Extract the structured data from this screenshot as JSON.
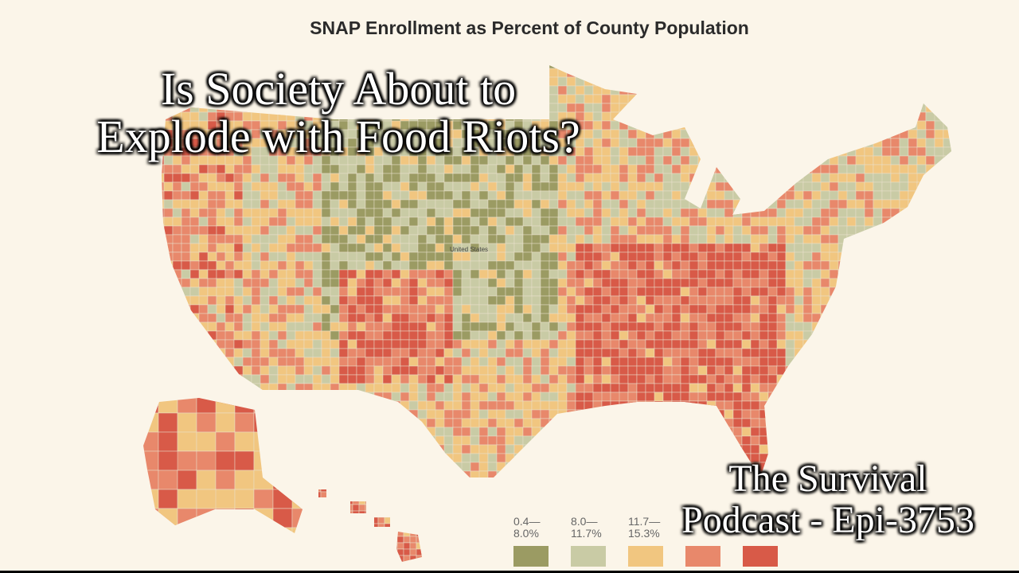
{
  "map": {
    "title": "SNAP Enrollment as Percent of County Population",
    "country_label": "United States",
    "legend": [
      {
        "label": "0.4—\n8.0%",
        "color": "#9b9b63"
      },
      {
        "label": "8.0—\n11.7%",
        "color": "#c9cba5"
      },
      {
        "label": "11.7—\n15.3%",
        "color": "#f1c680"
      },
      {
        "label": "",
        "color": "#e8886b"
      },
      {
        "label": "",
        "color": "#d85a48"
      }
    ]
  },
  "overlay": {
    "headline_line1": "Is Society About to",
    "headline_line2": "Explode with Food Riots?",
    "podcast_line1": "The Survival",
    "podcast_line2": "Podcast - Epi-3753"
  }
}
